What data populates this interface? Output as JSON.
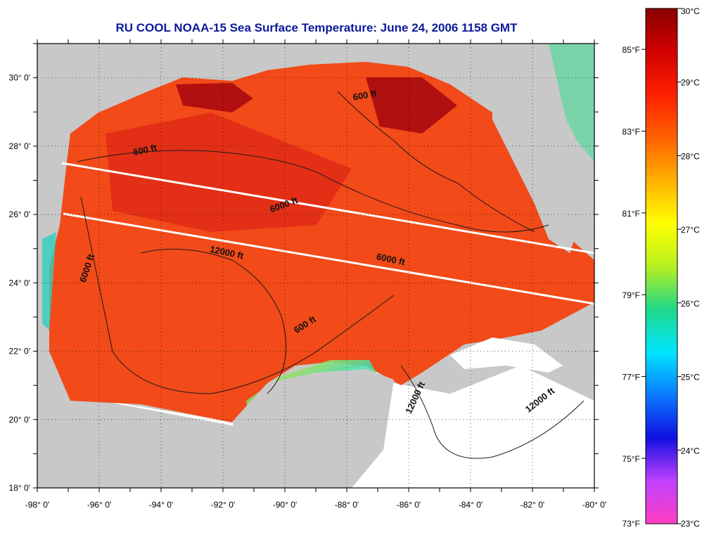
{
  "title": "RU COOL  NOAA-15  Sea Surface Temperature:  June 24, 2006 1158 GMT",
  "map": {
    "lon_range": [
      -98,
      -80
    ],
    "lat_range": [
      18,
      31
    ],
    "lon_ticks": [
      "-98° 0'",
      "-96° 0'",
      "-94° 0'",
      "-92° 0'",
      "-90° 0'",
      "-88° 0'",
      "-86° 0'",
      "-84° 0'",
      "-82° 0'",
      "-80° 0'"
    ],
    "lat_ticks": [
      "18° 0'",
      "20° 0'",
      "22° 0'",
      "24° 0'",
      "26° 0'",
      "28° 0'",
      "30° 0'"
    ],
    "contour_labels": [
      {
        "text": "600 ft",
        "lon": -94.5,
        "lat": 27.8,
        "angle": -12
      },
      {
        "text": "6000 ft",
        "lon": -90.0,
        "lat": 26.2,
        "angle": -20
      },
      {
        "text": "600 ft",
        "lon": -87.4,
        "lat": 29.4,
        "angle": -10
      },
      {
        "text": "12000 ft",
        "lon": -91.9,
        "lat": 24.8,
        "angle": 12
      },
      {
        "text": "6000 ft",
        "lon": -86.6,
        "lat": 24.6,
        "angle": 12
      },
      {
        "text": "6000 ft",
        "lon": -96.3,
        "lat": 24.4,
        "angle": -72
      },
      {
        "text": "600 ft",
        "lon": -89.3,
        "lat": 22.7,
        "angle": -32
      },
      {
        "text": "12000 ft",
        "lon": -85.7,
        "lat": 20.6,
        "angle": -65
      },
      {
        "text": "12000 ft",
        "lon": -81.7,
        "lat": 20.5,
        "angle": -38
      }
    ]
  },
  "colorbar": {
    "celsius_labels": [
      "30°C",
      "29°C",
      "28°C",
      "27°C",
      "26°C",
      "25°C",
      "24°C",
      "23°C"
    ],
    "fahrenheit_labels": [
      "85°F",
      "83°F",
      "81°F",
      "79°F",
      "77°F",
      "75°F",
      "73°F"
    ],
    "celsius_values": [
      30,
      29,
      28,
      27,
      26,
      25,
      24,
      23
    ],
    "fahrenheit_values": [
      85,
      83,
      81,
      79,
      77,
      75,
      73
    ],
    "range_c": [
      23,
      30
    ],
    "colors": [
      "#ff3fc0",
      "#c040ff",
      "#1010e0",
      "#0a7aff",
      "#00e5ff",
      "#20d888",
      "#b8f020",
      "#ffff00",
      "#ffb000",
      "#ff6000",
      "#ff2000",
      "#d00000",
      "#8a0000"
    ]
  },
  "colors": {
    "land": "#c8c8c8",
    "no_data": "#ffffff",
    "sst_base": "#f24a18",
    "title": "#0a1a9a"
  }
}
